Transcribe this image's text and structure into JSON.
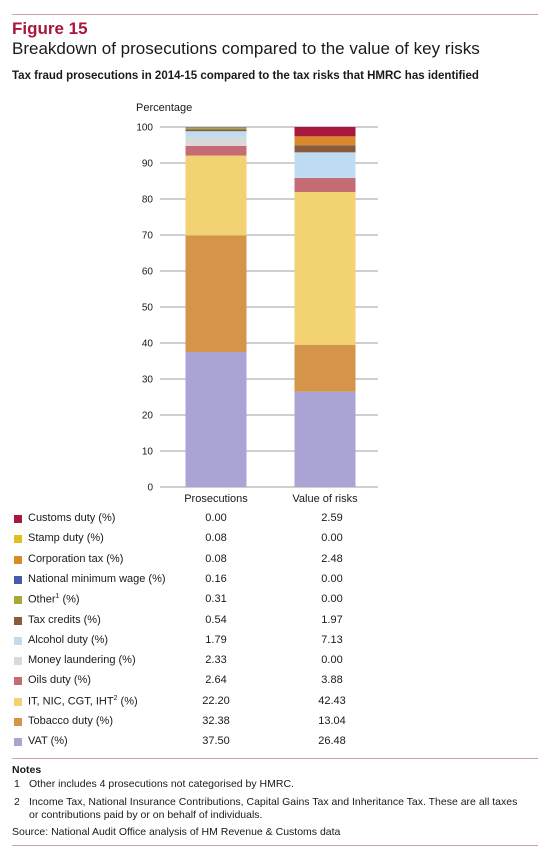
{
  "figure": {
    "label": "Figure 15",
    "title": "Breakdown of prosecutions compared to the value of key risks",
    "subtitle": "Tax fraud prosecutions in 2014-15 compared to the tax risks that HMRC has identified"
  },
  "chart_data": {
    "type": "bar",
    "stacked": true,
    "ylabel": "Percentage",
    "ylim": [
      0,
      100
    ],
    "yticks": [
      0,
      10,
      20,
      30,
      40,
      50,
      60,
      70,
      80,
      90,
      100
    ],
    "categories": [
      "Prosecutions",
      "Value of risks"
    ],
    "series": [
      {
        "name": "VAT (%)",
        "label_main": "VAT (%)",
        "sup": "",
        "label_tail": "",
        "color": "#a9a4d4",
        "values": [
          37.5,
          26.48
        ],
        "display": [
          "37.50",
          "26.48"
        ]
      },
      {
        "name": "Tobacco duty (%)",
        "label_main": "Tobacco duty (%)",
        "sup": "",
        "label_tail": "",
        "color": "#d4944a",
        "values": [
          32.38,
          13.04
        ],
        "display": [
          "32.38",
          "13.04"
        ]
      },
      {
        "name": "IT, NIC, CGT, IHT² (%)",
        "label_main": "IT, NIC, CGT, IHT",
        "sup": "2",
        "label_tail": " (%)",
        "color": "#f2d272",
        "values": [
          22.2,
          42.43
        ],
        "display": [
          "22.20",
          "42.43"
        ]
      },
      {
        "name": "Oils duty (%)",
        "label_main": "Oils duty (%)",
        "sup": "",
        "label_tail": "",
        "color": "#c56b74",
        "values": [
          2.64,
          3.88
        ],
        "display": [
          "2.64",
          "3.88"
        ]
      },
      {
        "name": "Money laundering (%)",
        "label_main": "Money laundering (%)",
        "sup": "",
        "label_tail": "",
        "color": "#d9d9d9",
        "values": [
          2.33,
          0.0
        ],
        "display": [
          "2.33",
          "0.00"
        ]
      },
      {
        "name": "Alcohol duty (%)",
        "label_main": "Alcohol duty (%)",
        "sup": "",
        "label_tail": "",
        "color": "#bfdcf3",
        "values": [
          1.79,
          7.13
        ],
        "display": [
          "1.79",
          "7.13"
        ]
      },
      {
        "name": "Tax credits (%)",
        "label_main": "Tax credits (%)",
        "sup": "",
        "label_tail": "",
        "color": "#8a5a3c",
        "values": [
          0.54,
          1.97
        ],
        "display": [
          "0.54",
          "1.97"
        ]
      },
      {
        "name": "Other¹ (%)",
        "label_main": "Other",
        "sup": "1",
        "label_tail": " (%)",
        "color": "#a8a832",
        "values": [
          0.31,
          0.0
        ],
        "display": [
          "0.31",
          "0.00"
        ]
      },
      {
        "name": "National minimum wage (%)",
        "label_main": "National minimum wage (%)",
        "sup": "",
        "label_tail": "",
        "color": "#4a5aa8",
        "values": [
          0.16,
          0.0
        ],
        "display": [
          "0.16",
          "0.00"
        ]
      },
      {
        "name": "Corporation tax (%)",
        "label_main": "Corporation tax (%)",
        "sup": "",
        "label_tail": "",
        "color": "#d9882a",
        "values": [
          0.08,
          2.48
        ],
        "display": [
          "0.08",
          "2.48"
        ]
      },
      {
        "name": "Stamp duty (%)",
        "label_main": "Stamp duty (%)",
        "sup": "",
        "label_tail": "",
        "color": "#e0c020",
        "values": [
          0.08,
          0.0
        ],
        "display": [
          "0.08",
          "0.00"
        ]
      },
      {
        "name": "Customs duty (%)",
        "label_main": "Customs duty (%)",
        "sup": "",
        "label_tail": "",
        "color": "#a8173c",
        "values": [
          0.0,
          2.59
        ],
        "display": [
          "0.00",
          "2.59"
        ]
      }
    ],
    "grid": true,
    "legend": "table-below"
  },
  "notes": {
    "heading": "Notes",
    "items": [
      {
        "num": "1",
        "text": "Other includes 4 prosecutions not categorised by HMRC."
      },
      {
        "num": "2",
        "text": "Income Tax, National Insurance Contributions, Capital Gains Tax and Inheritance Tax. These are all taxes or contributions paid by or on behalf of individuals."
      }
    ]
  },
  "source": "Source: National Audit Office analysis of HM Revenue & Customs data",
  "colors": {
    "accent": "#a8173c",
    "rule": "#c9a3b0",
    "grid": "#7f7f7f"
  }
}
